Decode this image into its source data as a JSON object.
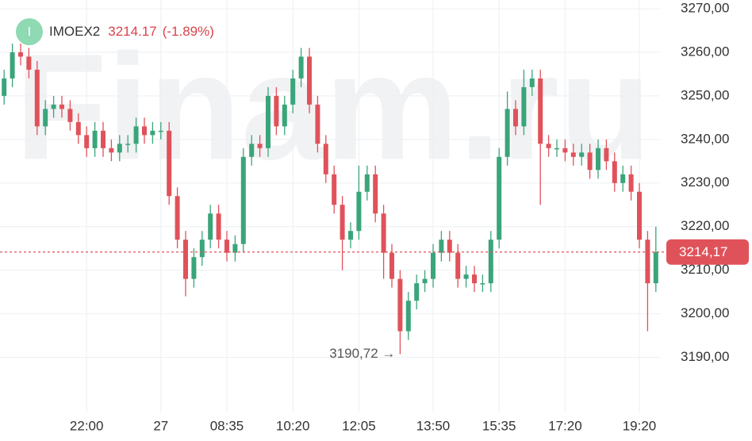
{
  "chart_data": {
    "type": "candlestick",
    "watermark": "Finam.ru",
    "badge": "I",
    "ticker": "IMOEX2",
    "price": "3214.17",
    "change": "(-1.89%)",
    "categories": [
      null,
      null,
      null,
      null,
      null,
      null,
      null,
      null,
      null,
      null,
      "22:00",
      null,
      null,
      null,
      null,
      null,
      null,
      null,
      null,
      "27",
      null,
      null,
      null,
      null,
      null,
      null,
      null,
      "08:35",
      null,
      null,
      null,
      null,
      null,
      null,
      null,
      "10:20",
      null,
      null,
      null,
      null,
      null,
      null,
      null,
      "12:05",
      null,
      null,
      null,
      null,
      null,
      null,
      null,
      null,
      "13:50",
      null,
      null,
      null,
      null,
      null,
      null,
      null,
      "15:35",
      null,
      null,
      null,
      null,
      null,
      null,
      null,
      "17:20",
      null,
      null,
      null,
      null,
      null,
      null,
      null,
      null,
      "19:20",
      null,
      null
    ],
    "open": [
      3250,
      3254,
      3260,
      3259,
      3256,
      3243,
      3247,
      3248,
      3247,
      3244,
      3241,
      3238,
      3242,
      3238,
      3237,
      3239,
      3239,
      3243,
      3241,
      3242,
      3242,
      3227,
      3217,
      3208,
      3213,
      3217,
      3223,
      3217,
      3214,
      3216,
      3236,
      3239,
      3238,
      3250,
      3243,
      3248,
      3254,
      3259,
      3248,
      3239,
      3232,
      3225,
      3217,
      3219,
      3228,
      3232,
      3223,
      3214,
      3208,
      3196,
      3203,
      3207,
      3208,
      3214,
      3217,
      3214,
      3208,
      3209,
      3207,
      3207,
      3217,
      3236,
      3247,
      3243,
      3252,
      3254,
      3239,
      3238,
      3238,
      3237,
      3236,
      3237,
      3233,
      3238,
      3235,
      3230,
      3232,
      3228,
      3217,
      3207
    ],
    "high": [
      3256,
      3262,
      3262,
      3261,
      3258,
      3249,
      3250,
      3250,
      3249,
      3246,
      3243,
      3244,
      3244,
      3240,
      3241,
      3241,
      3245,
      3245,
      3244,
      3244,
      3244,
      3229,
      3219,
      3215,
      3219,
      3225,
      3225,
      3219,
      3218,
      3238,
      3241,
      3241,
      3252,
      3252,
      3250,
      3256,
      3261,
      3261,
      3250,
      3241,
      3234,
      3227,
      3221,
      3234,
      3234,
      3234,
      3225,
      3216,
      3210,
      3205,
      3209,
      3210,
      3216,
      3219,
      3219,
      3216,
      3211,
      3211,
      3209,
      3219,
      3238,
      3251,
      3249,
      3256,
      3256,
      3256,
      3241,
      3240,
      3240,
      3239,
      3239,
      3239,
      3240,
      3240,
      3237,
      3234,
      3234,
      3230,
      3219,
      3220
    ],
    "low": [
      3248,
      3252,
      3257,
      3254,
      3241,
      3241,
      3245,
      3245,
      3242,
      3239,
      3236,
      3236,
      3236,
      3235,
      3235,
      3237,
      3237,
      3239,
      3239,
      3240,
      3225,
      3215,
      3204,
      3206,
      3211,
      3215,
      3215,
      3212,
      3212,
      3214,
      3234,
      3236,
      3236,
      3241,
      3241,
      3246,
      3252,
      3246,
      3237,
      3230,
      3223,
      3210,
      3215,
      3217,
      3226,
      3221,
      3208,
      3206,
      3190.72,
      3194,
      3201,
      3205,
      3206,
      3212,
      3212,
      3206,
      3206,
      3205,
      3205,
      3205,
      3215,
      3234,
      3241,
      3241,
      3250,
      3225,
      3236,
      3236,
      3235,
      3234,
      3234,
      3231,
      3231,
      3233,
      3228,
      3228,
      3226,
      3215,
      3196,
      3205
    ],
    "close": [
      3254,
      3260,
      3259,
      3256,
      3243,
      3247,
      3248,
      3247,
      3244,
      3241,
      3238,
      3242,
      3238,
      3237,
      3239,
      3239,
      3243,
      3241,
      3242,
      3242,
      3227,
      3217,
      3208,
      3213,
      3217,
      3223,
      3217,
      3214,
      3216,
      3236,
      3239,
      3238,
      3250,
      3243,
      3248,
      3254,
      3259,
      3248,
      3239,
      3232,
      3225,
      3217,
      3219,
      3228,
      3232,
      3223,
      3214,
      3208,
      3196,
      3203,
      3207,
      3208,
      3214,
      3217,
      3214,
      3208,
      3209,
      3207,
      3207,
      3217,
      3236,
      3247,
      3243,
      3252,
      3254,
      3239,
      3238,
      3238,
      3237,
      3236,
      3237,
      3233,
      3238,
      3235,
      3230,
      3232,
      3228,
      3217,
      3207,
      3214.17
    ],
    "up_color": "#3aa57a",
    "down_color": "#e0525a",
    "ylim": [
      3185,
      3272
    ],
    "yticks": [
      {
        "value": 3190,
        "label": "3190,00"
      },
      {
        "value": 3200,
        "label": "3200,00"
      },
      {
        "value": 3210,
        "label": "3210,00"
      },
      {
        "value": 3220,
        "label": "3220,00"
      },
      {
        "value": 3230,
        "label": "3230,00"
      },
      {
        "value": 3240,
        "label": "3240,00"
      },
      {
        "value": 3250,
        "label": "3250,00"
      },
      {
        "value": 3260,
        "label": "3260,00"
      },
      {
        "value": 3270,
        "label": "3270,00"
      }
    ],
    "last_price": {
      "value": 3214.17,
      "label": "3214,17"
    },
    "min_annotation": {
      "value": 3190.72,
      "label": "3190,72 →",
      "index": 48
    },
    "grid": true
  }
}
